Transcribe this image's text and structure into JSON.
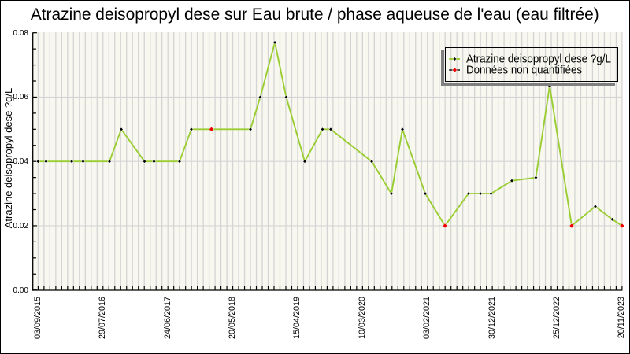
{
  "title": "Atrazine deisopropyl dese sur Eau brute / phase aqueuse de l'eau (eau filtrée)",
  "axes": {
    "y_label": "Atrazine deisopropyl dese ?g/L",
    "y_tick_labels": [
      "0.00",
      "0.02",
      "0.04",
      "0.06",
      "0.08"
    ],
    "x_tick_labels": [
      "03/09/2015",
      "29/07/2016",
      "24/06/2017",
      "20/05/2018",
      "15/04/2019",
      "10/03/2020",
      "03/02/2021",
      "30/12/2021",
      "25/12/2022",
      "20/11/2023"
    ]
  },
  "legend": {
    "entries": [
      {
        "label": "Atrazine deisopropyl dese ?g/L",
        "line_color": "#9acd32",
        "marker": "black-diamond"
      },
      {
        "label": "Données non quantifiées",
        "line_color": "#000000",
        "marker": "red-diamond"
      }
    ]
  },
  "colors": {
    "plot_background": "#f8f8f0",
    "gridline": "#d4d4d4",
    "axis": "#000000",
    "series_line": "#9acd32",
    "marker_quantified": "#000000",
    "marker_non_quantified": "#f00000",
    "legend_shadow": "#808080",
    "text": "#000000",
    "outer_border": "#000000"
  },
  "chart_data": {
    "type": "line",
    "title": "Atrazine deisopropyl dese sur Eau brute / phase aqueuse de l'eau (eau filtrée)",
    "xlabel": "",
    "ylabel": "Atrazine deisopropyl dese ?g/L",
    "ylim": [
      0,
      0.08
    ],
    "y_major_ticks": [
      0,
      0.02,
      0.04,
      0.06,
      0.08
    ],
    "y_minor_tick_step": 0.005,
    "y_gridlines": [
      0.02,
      0.04,
      0.06
    ],
    "x_gridline_count": 100,
    "x_tick_labels": [
      "03/09/2015",
      "29/07/2016",
      "24/06/2017",
      "20/05/2018",
      "15/04/2019",
      "10/03/2020",
      "03/02/2021",
      "30/12/2021",
      "25/12/2022",
      "20/11/2023"
    ],
    "legend_position": "top-right",
    "grid": true,
    "series": [
      {
        "name": "Atrazine deisopropyl dese ?g/L",
        "points": [
          {
            "x_frac": 0.0,
            "value": 0.04,
            "quantified": true
          },
          {
            "x_frac": 0.0136,
            "value": 0.04,
            "quantified": true
          },
          {
            "x_frac": 0.0575,
            "value": 0.04,
            "quantified": true
          },
          {
            "x_frac": 0.077,
            "value": 0.04,
            "quantified": true
          },
          {
            "x_frac": 0.1222,
            "value": 0.04,
            "quantified": true
          },
          {
            "x_frac": 0.1424,
            "value": 0.05,
            "quantified": true
          },
          {
            "x_frac": 0.1822,
            "value": 0.04,
            "quantified": true
          },
          {
            "x_frac": 0.1984,
            "value": 0.04,
            "quantified": true
          },
          {
            "x_frac": 0.2422,
            "value": 0.04,
            "quantified": true
          },
          {
            "x_frac": 0.2624,
            "value": 0.05,
            "quantified": true
          },
          {
            "x_frac": 0.2968,
            "value": 0.05,
            "quantified": false
          },
          {
            "x_frac": 0.3636,
            "value": 0.05,
            "quantified": true
          },
          {
            "x_frac": 0.3804,
            "value": 0.06,
            "quantified": true
          },
          {
            "x_frac": 0.4054,
            "value": 0.077,
            "quantified": true
          },
          {
            "x_frac": 0.4249,
            "value": 0.06,
            "quantified": true
          },
          {
            "x_frac": 0.4566,
            "value": 0.04,
            "quantified": true
          },
          {
            "x_frac": 0.487,
            "value": 0.05,
            "quantified": true
          },
          {
            "x_frac": 0.5011,
            "value": 0.05,
            "quantified": true
          },
          {
            "x_frac": 0.5713,
            "value": 0.04,
            "quantified": true
          },
          {
            "x_frac": 0.605,
            "value": 0.03,
            "quantified": true
          },
          {
            "x_frac": 0.6239,
            "value": 0.05,
            "quantified": true
          },
          {
            "x_frac": 0.663,
            "value": 0.03,
            "quantified": true
          },
          {
            "x_frac": 0.6967,
            "value": 0.02,
            "quantified": false
          },
          {
            "x_frac": 0.7371,
            "value": 0.03,
            "quantified": true
          },
          {
            "x_frac": 0.7574,
            "value": 0.03,
            "quantified": true
          },
          {
            "x_frac": 0.7756,
            "value": 0.03,
            "quantified": true
          },
          {
            "x_frac": 0.8113,
            "value": 0.034,
            "quantified": true
          },
          {
            "x_frac": 0.8524,
            "value": 0.035,
            "quantified": true
          },
          {
            "x_frac": 0.876,
            "value": 0.0635,
            "quantified": true
          },
          {
            "x_frac": 0.9138,
            "value": 0.02,
            "quantified": false
          },
          {
            "x_frac": 0.9542,
            "value": 0.026,
            "quantified": true
          },
          {
            "x_frac": 0.9832,
            "value": 0.022,
            "quantified": true
          },
          {
            "x_frac": 1.0,
            "value": 0.02,
            "quantified": false
          }
        ]
      }
    ]
  }
}
